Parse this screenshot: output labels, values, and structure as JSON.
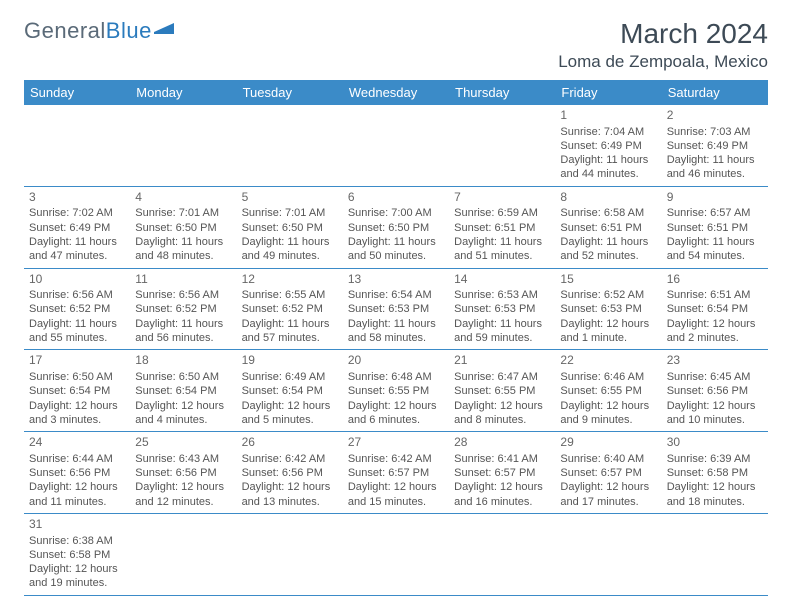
{
  "brand": {
    "part1": "General",
    "part2": "Blue"
  },
  "title": "March 2024",
  "location": "Loma de Zempoala, Mexico",
  "colors": {
    "header_bg": "#3b8bc8",
    "header_text": "#ffffff",
    "border": "#3b8bc8",
    "brand_gray": "#5a6a78",
    "brand_blue": "#2b7bbd",
    "text": "#555555"
  },
  "weekdays": [
    "Sunday",
    "Monday",
    "Tuesday",
    "Wednesday",
    "Thursday",
    "Friday",
    "Saturday"
  ],
  "weeks": [
    [
      null,
      null,
      null,
      null,
      null,
      {
        "n": "1",
        "rise": "7:04 AM",
        "set": "6:49 PM",
        "day": "11 hours and 44 minutes."
      },
      {
        "n": "2",
        "rise": "7:03 AM",
        "set": "6:49 PM",
        "day": "11 hours and 46 minutes."
      }
    ],
    [
      {
        "n": "3",
        "rise": "7:02 AM",
        "set": "6:49 PM",
        "day": "11 hours and 47 minutes."
      },
      {
        "n": "4",
        "rise": "7:01 AM",
        "set": "6:50 PM",
        "day": "11 hours and 48 minutes."
      },
      {
        "n": "5",
        "rise": "7:01 AM",
        "set": "6:50 PM",
        "day": "11 hours and 49 minutes."
      },
      {
        "n": "6",
        "rise": "7:00 AM",
        "set": "6:50 PM",
        "day": "11 hours and 50 minutes."
      },
      {
        "n": "7",
        "rise": "6:59 AM",
        "set": "6:51 PM",
        "day": "11 hours and 51 minutes."
      },
      {
        "n": "8",
        "rise": "6:58 AM",
        "set": "6:51 PM",
        "day": "11 hours and 52 minutes."
      },
      {
        "n": "9",
        "rise": "6:57 AM",
        "set": "6:51 PM",
        "day": "11 hours and 54 minutes."
      }
    ],
    [
      {
        "n": "10",
        "rise": "6:56 AM",
        "set": "6:52 PM",
        "day": "11 hours and 55 minutes."
      },
      {
        "n": "11",
        "rise": "6:56 AM",
        "set": "6:52 PM",
        "day": "11 hours and 56 minutes."
      },
      {
        "n": "12",
        "rise": "6:55 AM",
        "set": "6:52 PM",
        "day": "11 hours and 57 minutes."
      },
      {
        "n": "13",
        "rise": "6:54 AM",
        "set": "6:53 PM",
        "day": "11 hours and 58 minutes."
      },
      {
        "n": "14",
        "rise": "6:53 AM",
        "set": "6:53 PM",
        "day": "11 hours and 59 minutes."
      },
      {
        "n": "15",
        "rise": "6:52 AM",
        "set": "6:53 PM",
        "day": "12 hours and 1 minute."
      },
      {
        "n": "16",
        "rise": "6:51 AM",
        "set": "6:54 PM",
        "day": "12 hours and 2 minutes."
      }
    ],
    [
      {
        "n": "17",
        "rise": "6:50 AM",
        "set": "6:54 PM",
        "day": "12 hours and 3 minutes."
      },
      {
        "n": "18",
        "rise": "6:50 AM",
        "set": "6:54 PM",
        "day": "12 hours and 4 minutes."
      },
      {
        "n": "19",
        "rise": "6:49 AM",
        "set": "6:54 PM",
        "day": "12 hours and 5 minutes."
      },
      {
        "n": "20",
        "rise": "6:48 AM",
        "set": "6:55 PM",
        "day": "12 hours and 6 minutes."
      },
      {
        "n": "21",
        "rise": "6:47 AM",
        "set": "6:55 PM",
        "day": "12 hours and 8 minutes."
      },
      {
        "n": "22",
        "rise": "6:46 AM",
        "set": "6:55 PM",
        "day": "12 hours and 9 minutes."
      },
      {
        "n": "23",
        "rise": "6:45 AM",
        "set": "6:56 PM",
        "day": "12 hours and 10 minutes."
      }
    ],
    [
      {
        "n": "24",
        "rise": "6:44 AM",
        "set": "6:56 PM",
        "day": "12 hours and 11 minutes."
      },
      {
        "n": "25",
        "rise": "6:43 AM",
        "set": "6:56 PM",
        "day": "12 hours and 12 minutes."
      },
      {
        "n": "26",
        "rise": "6:42 AM",
        "set": "6:56 PM",
        "day": "12 hours and 13 minutes."
      },
      {
        "n": "27",
        "rise": "6:42 AM",
        "set": "6:57 PM",
        "day": "12 hours and 15 minutes."
      },
      {
        "n": "28",
        "rise": "6:41 AM",
        "set": "6:57 PM",
        "day": "12 hours and 16 minutes."
      },
      {
        "n": "29",
        "rise": "6:40 AM",
        "set": "6:57 PM",
        "day": "12 hours and 17 minutes."
      },
      {
        "n": "30",
        "rise": "6:39 AM",
        "set": "6:58 PM",
        "day": "12 hours and 18 minutes."
      }
    ],
    [
      {
        "n": "31",
        "rise": "6:38 AM",
        "set": "6:58 PM",
        "day": "12 hours and 19 minutes."
      },
      null,
      null,
      null,
      null,
      null,
      null
    ]
  ],
  "labels": {
    "sunrise": "Sunrise: ",
    "sunset": "Sunset: ",
    "daylight": "Daylight: "
  }
}
